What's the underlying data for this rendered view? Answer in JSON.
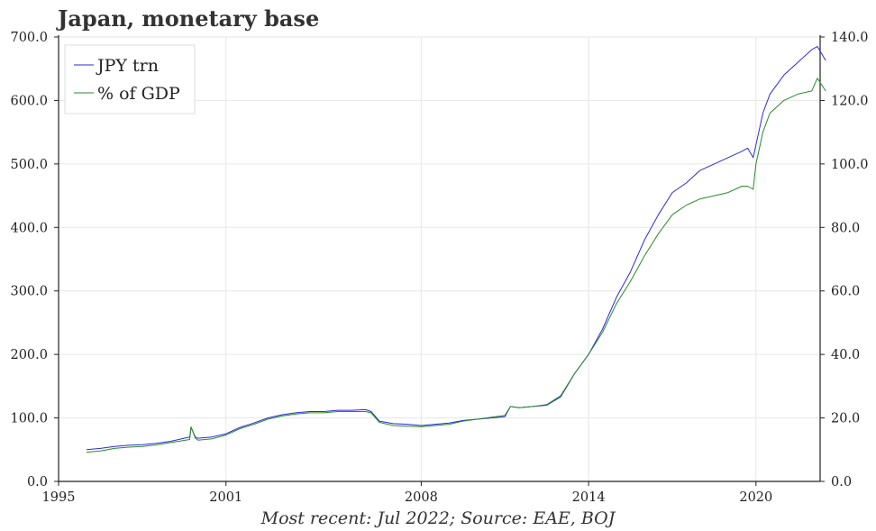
{
  "chart_data": {
    "type": "line",
    "title": "Japan, monetary base",
    "footnote": "Most recent: Jul 2022; Source: EAE, BOJ",
    "x_ticks": [
      {
        "value": 1995,
        "label": "1995"
      },
      {
        "value": 2001,
        "label": "2001"
      },
      {
        "value": 2008,
        "label": "2008"
      },
      {
        "value": 2014,
        "label": "2014"
      },
      {
        "value": 2020,
        "label": "2020"
      }
    ],
    "xlim": [
      1995,
      2022.3
    ],
    "y_left": {
      "ylim": [
        0,
        700
      ],
      "ticks": [
        "0.0",
        "100.0",
        "200.0",
        "300.0",
        "400.0",
        "500.0",
        "600.0",
        "700.0"
      ]
    },
    "y_right": {
      "ylim": [
        0,
        140
      ],
      "ticks": [
        "0.0",
        "20.0",
        "40.0",
        "60.0",
        "80.0",
        "100.0",
        "120.0",
        "140.0"
      ]
    },
    "grid": true,
    "legend_position": "top-left",
    "series": [
      {
        "name": "JPY trn",
        "color": "#2b2bd9",
        "axis": "left",
        "x": [
          1996.0,
          1996.5,
          1997.0,
          1997.5,
          1998.0,
          1998.5,
          1999.0,
          1999.7,
          1999.75,
          1999.9,
          2000.0,
          2000.5,
          2001.0,
          2001.5,
          2002.0,
          2002.5,
          2003.0,
          2003.5,
          2004.0,
          2004.5,
          2005.0,
          2005.5,
          2006.0,
          2006.2,
          2006.5,
          2007.0,
          2007.5,
          2008.0,
          2008.5,
          2009.0,
          2009.5,
          2010.0,
          2010.5,
          2011.0,
          2011.2,
          2011.5,
          2012.0,
          2012.5,
          2013.0,
          2013.5,
          2014.0,
          2014.5,
          2015.0,
          2015.5,
          2016.0,
          2016.5,
          2017.0,
          2017.5,
          2018.0,
          2018.5,
          2019.0,
          2019.5,
          2019.7,
          2019.9,
          2020.0,
          2020.25,
          2020.5,
          2021.0,
          2021.5,
          2022.0,
          2022.2,
          2022.5
        ],
        "y": [
          50,
          52,
          55,
          57,
          58,
          60,
          63,
          70,
          85,
          70,
          68,
          70,
          75,
          85,
          92,
          100,
          105,
          108,
          110,
          110,
          112,
          112,
          113,
          110,
          95,
          91,
          90,
          88,
          90,
          92,
          96,
          98,
          100,
          102,
          118,
          116,
          118,
          120,
          133,
          170,
          200,
          240,
          290,
          330,
          380,
          420,
          455,
          470,
          490,
          500,
          510,
          520,
          525,
          510,
          530,
          580,
          610,
          640,
          660,
          680,
          685,
          663
        ]
      },
      {
        "name": "% of GDP",
        "color": "#2a8a2a",
        "axis": "right",
        "x": [
          1996.0,
          1996.5,
          1997.0,
          1997.5,
          1998.0,
          1998.5,
          1999.0,
          1999.7,
          1999.75,
          1999.9,
          2000.0,
          2000.5,
          2001.0,
          2001.5,
          2002.0,
          2002.5,
          2003.0,
          2003.5,
          2004.0,
          2004.5,
          2005.0,
          2005.5,
          2006.0,
          2006.2,
          2006.5,
          2007.0,
          2007.5,
          2008.0,
          2008.5,
          2009.0,
          2009.5,
          2010.0,
          2010.5,
          2011.0,
          2011.2,
          2011.5,
          2012.0,
          2012.5,
          2013.0,
          2013.5,
          2014.0,
          2014.5,
          2015.0,
          2015.5,
          2016.0,
          2016.5,
          2017.0,
          2017.5,
          2018.0,
          2018.5,
          2019.0,
          2019.5,
          2019.7,
          2019.9,
          2020.0,
          2020.25,
          2020.5,
          2021.0,
          2021.5,
          2022.0,
          2022.2,
          2022.5
        ],
        "y": [
          9.2,
          9.6,
          10.4,
          10.8,
          11.0,
          11.5,
          12.2,
          13.2,
          17.2,
          13.6,
          13.0,
          13.4,
          14.6,
          16.6,
          18.0,
          19.6,
          20.6,
          21.2,
          21.6,
          21.6,
          22.0,
          22.0,
          22.0,
          21.6,
          18.6,
          17.6,
          17.4,
          17.2,
          17.6,
          18.0,
          19.0,
          19.6,
          20.2,
          20.8,
          23.6,
          23.2,
          23.6,
          24.2,
          27.0,
          34.0,
          40.0,
          47.0,
          56.0,
          63.0,
          71.0,
          78.0,
          84.0,
          87.0,
          89.0,
          90.0,
          91.0,
          93.0,
          93.0,
          92.0,
          100.0,
          110.0,
          116.0,
          120.0,
          122.0,
          123.0,
          127.0,
          123.0
        ]
      }
    ]
  }
}
